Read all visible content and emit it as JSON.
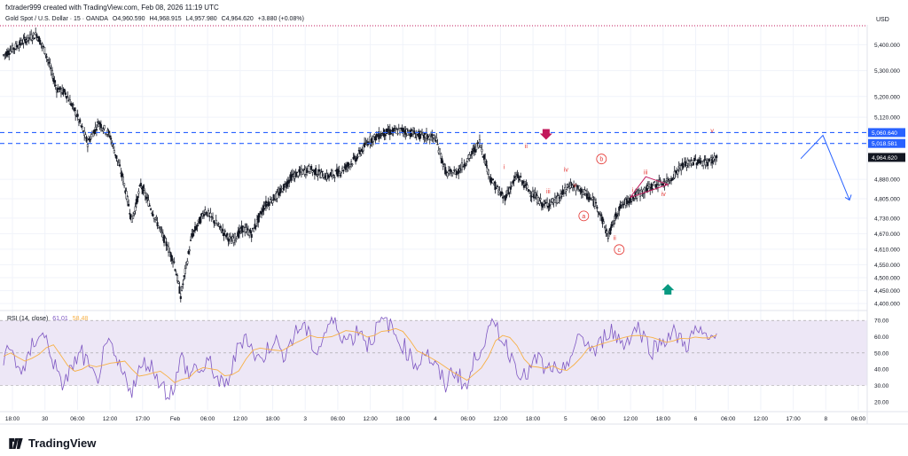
{
  "header": {
    "creator_line": "fxtrader999 created with TradingView.com, Feb 08, 2026 11:19 UTC",
    "symbol": "Gold Spot / U.S. Dollar · 15 · OANDA",
    "open": "O4,960.590",
    "high": "H4,968.915",
    "low": "L4,957.980",
    "close": "C4,964.620",
    "change": "+3.880 (+0.08%)"
  },
  "currency": "USD",
  "logo": {
    "text": "TradingView",
    "icon": "tradingview-logo-icon"
  },
  "colors": {
    "up_candle": "#131722",
    "grid": "#f0f3fa",
    "resistance": "#2962ff",
    "top_dotted": "#c2185b",
    "wave_label": "#e53935",
    "rsi_line": "#7e57c2",
    "rsi_ma": "#f7b046",
    "rsi_band": "#ede7f6",
    "down_arrow": "#c2185b",
    "up_arrow": "#089981",
    "forecast": "#2962ff",
    "triangle": "#c2185b"
  },
  "chart_data": {
    "type": "candlestick",
    "instrument": "Gold Spot / U.S. Dollar",
    "timeframe": "15",
    "price_axis": {
      "ticks": [
        5400,
        5300,
        5200,
        5120,
        4880,
        4805,
        4730,
        4670,
        4610,
        4550,
        4500,
        4450,
        4400
      ],
      "labels": [
        "5,400.000",
        "5,300.000",
        "5,200.000",
        "5,120.000",
        "4,880.000",
        "4,805.000",
        "4,730.000",
        "4,670.000",
        "4,610.000",
        "4,550.000",
        "4,500.000",
        "4,450.000",
        "4,400.000"
      ],
      "range": [
        4380,
        5470
      ]
    },
    "time_axis": [
      "18:00",
      "30",
      "06:00",
      "12:00",
      "17:00",
      "Feb",
      "06:00",
      "12:00",
      "18:00",
      "3",
      "06:00",
      "12:00",
      "18:00",
      "4",
      "06:00",
      "12:00",
      "18:00",
      "5",
      "06:00",
      "12:00",
      "18:00",
      "6",
      "06:00",
      "12:00",
      "17:00",
      "8",
      "06:00"
    ],
    "price_path": [
      [
        0,
        5360
      ],
      [
        6,
        5395
      ],
      [
        10,
        5420
      ],
      [
        15,
        5440
      ],
      [
        19,
        5370
      ],
      [
        24,
        5230
      ],
      [
        28,
        5215
      ],
      [
        33,
        5130
      ],
      [
        38,
        5020
      ],
      [
        43,
        5100
      ],
      [
        48,
        5050
      ],
      [
        54,
        4880
      ],
      [
        58,
        4720
      ],
      [
        62,
        4860
      ],
      [
        68,
        4740
      ],
      [
        73,
        4640
      ],
      [
        77,
        4560
      ],
      [
        80,
        4430
      ],
      [
        85,
        4660
      ],
      [
        91,
        4760
      ],
      [
        97,
        4700
      ],
      [
        103,
        4640
      ],
      [
        108,
        4690
      ],
      [
        112,
        4670
      ],
      [
        118,
        4780
      ],
      [
        124,
        4820
      ],
      [
        130,
        4890
      ],
      [
        138,
        4920
      ],
      [
        146,
        4890
      ],
      [
        152,
        4910
      ],
      [
        159,
        4960
      ],
      [
        165,
        5030
      ],
      [
        172,
        5060
      ],
      [
        180,
        5070
      ],
      [
        188,
        5050
      ],
      [
        195,
        5040
      ],
      [
        200,
        4900
      ],
      [
        205,
        4910
      ],
      [
        210,
        4960
      ],
      [
        215,
        5025
      ],
      [
        220,
        4880
      ],
      [
        226,
        4805
      ],
      [
        232,
        4895
      ],
      [
        238,
        4830
      ],
      [
        244,
        4780
      ],
      [
        250,
        4800
      ],
      [
        256,
        4860
      ],
      [
        262,
        4830
      ],
      [
        268,
        4780
      ],
      [
        273,
        4660
      ],
      [
        278,
        4770
      ],
      [
        283,
        4805
      ],
      [
        288,
        4830
      ],
      [
        294,
        4860
      ],
      [
        300,
        4870
      ],
      [
        306,
        4930
      ],
      [
        312,
        4950
      ],
      [
        318,
        4945
      ],
      [
        322,
        4965
      ]
    ],
    "price_path_x_unit": "15-minute bars from start of visible range",
    "resistance_lines": [
      {
        "price": 5060.64,
        "label": "5,060.640",
        "style": "dashed"
      },
      {
        "price": 5018.581,
        "label": "5,018.581",
        "style": "dashed"
      }
    ],
    "last_price": {
      "price": 4964.62,
      "label": "4,964.620"
    },
    "wave_labels": [
      {
        "text": "i",
        "price": 4920
      },
      {
        "text": "ii",
        "price": 5000
      },
      {
        "text": "iii",
        "price": 4825
      },
      {
        "text": "iv",
        "price": 4910
      },
      {
        "text": "v",
        "price": 4850
      },
      {
        "text": "a",
        "price": 4730,
        "circled": true
      },
      {
        "text": "b",
        "price": 4950,
        "circled": true
      },
      {
        "text": "i",
        "price": 4830
      },
      {
        "text": "ii",
        "price": 4645
      },
      {
        "text": "c",
        "price": 4600,
        "circled": true
      },
      {
        "text": "iii",
        "price": 4900
      },
      {
        "text": "iv",
        "price": 4815
      },
      {
        "text": "v",
        "price": 5060
      }
    ],
    "forecast_path": [
      [
        4960,
        4920
      ],
      [
        5020,
        4800
      ]
    ],
    "forecast_path_unit": "price values of the projected zigzag",
    "rsi": {
      "legend_name": "RSI (14, close)",
      "value": "61.01",
      "ma_value": "58.48",
      "axis_labels": [
        "70.00",
        "60.00",
        "50.00",
        "40.00",
        "30.00",
        "20.00"
      ],
      "axis_ticks": [
        70,
        60,
        50,
        40,
        30,
        20
      ],
      "range": [
        15,
        75
      ],
      "band": [
        30,
        70
      ],
      "midline": 50,
      "values": [
        48,
        52,
        42,
        38,
        55,
        62,
        58,
        45,
        30,
        36,
        44,
        50,
        40,
        32,
        48,
        55,
        42,
        35,
        28,
        38,
        45,
        40,
        32,
        25,
        30,
        48,
        36,
        42,
        38,
        45,
        33,
        28,
        40,
        55,
        62,
        50,
        45,
        52,
        60,
        48,
        55,
        62,
        68,
        58,
        50,
        62,
        70,
        65,
        58,
        60,
        66,
        55,
        62,
        70,
        68,
        60,
        55,
        48,
        42,
        52,
        45,
        38,
        30,
        40,
        35,
        28,
        45,
        55,
        62,
        68,
        58,
        50,
        42,
        35,
        40,
        48,
        38,
        42,
        32,
        45,
        52,
        60,
        55,
        50,
        58,
        65,
        60,
        55,
        62,
        66,
        58,
        52,
        56,
        60,
        62,
        58,
        55,
        64,
        60,
        58,
        62
      ]
    },
    "markers": [
      {
        "type": "down-arrow",
        "price": 5040
      },
      {
        "type": "up-arrow",
        "price": 4455
      }
    ]
  }
}
